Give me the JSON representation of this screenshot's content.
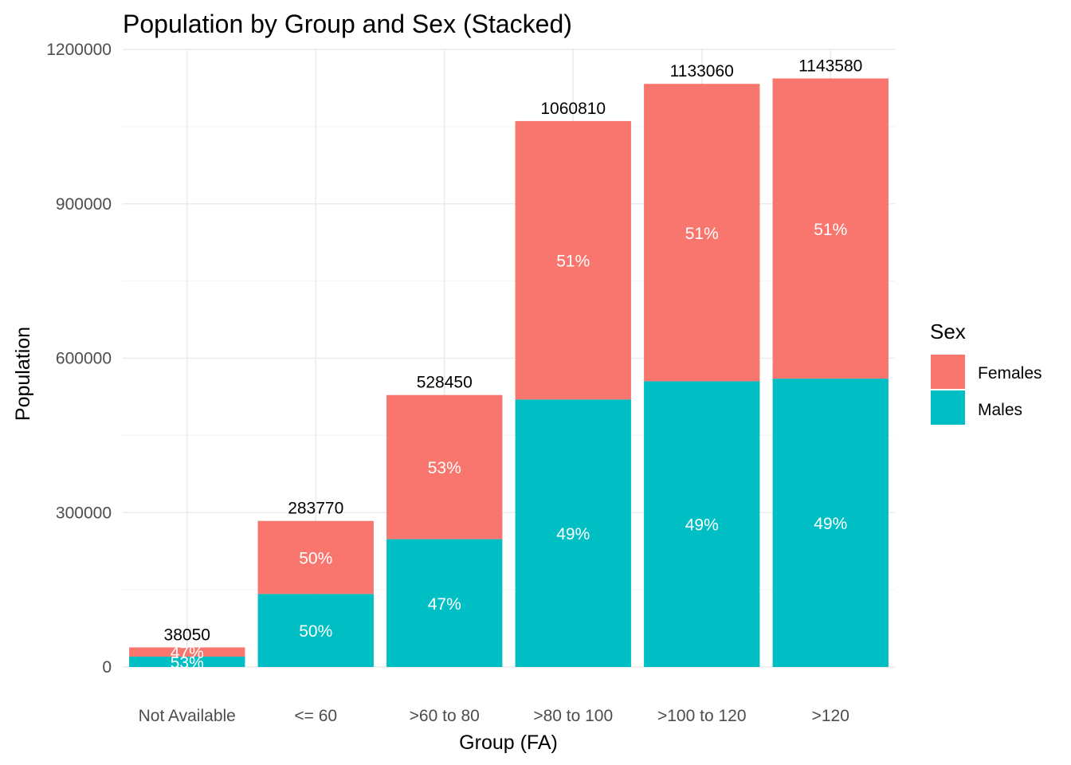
{
  "chart_data": {
    "type": "bar",
    "stacked": true,
    "title": "Population by Group and Sex (Stacked)",
    "xlabel": "Group (FA)",
    "ylabel": "Population",
    "ylim": [
      0,
      1200000
    ],
    "yticks": [
      "0",
      "300000",
      "600000",
      "900000",
      "1200000"
    ],
    "grid": true,
    "categories": [
      "Not Available",
      "<= 60",
      ">60 to 80",
      ">80 to 100",
      ">100 to 120",
      ">120"
    ],
    "series": [
      {
        "name": "Males",
        "color": "#00BFC4",
        "values": [
          20170,
          141880,
          248370,
          519800,
          555200,
          560350
        ],
        "pct_labels": [
          "53%",
          "50%",
          "47%",
          "49%",
          "49%",
          "49%"
        ]
      },
      {
        "name": "Females",
        "color": "#F8766D",
        "values": [
          17880,
          141890,
          280080,
          541010,
          577860,
          583230
        ],
        "pct_labels": [
          "47%",
          "50%",
          "53%",
          "51%",
          "51%",
          "51%"
        ]
      }
    ],
    "totals": [
      "38050",
      "283770",
      "528450",
      "1060810",
      "1133060",
      "1143580"
    ],
    "total_values": [
      38050,
      283770,
      528450,
      1060810,
      1133060,
      1143580
    ],
    "legend": {
      "title": "Sex",
      "position": "right",
      "items": [
        {
          "label": "Females",
          "color": "#F8766D"
        },
        {
          "label": "Males",
          "color": "#00BFC4"
        }
      ]
    }
  }
}
